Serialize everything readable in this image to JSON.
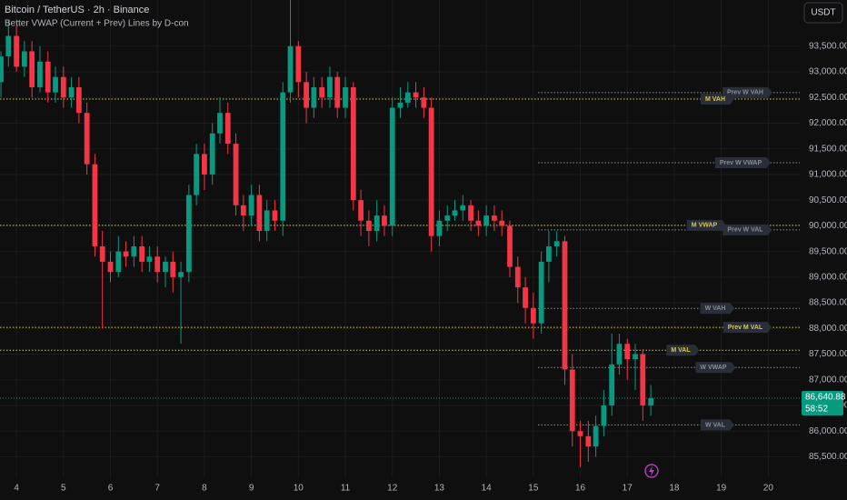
{
  "chart_data": {
    "type": "candlestick",
    "title": "Bitcoin / TetherUS · 2h · Binance",
    "subtitle": "Better VWAP (Current + Prev) Lines by D-con",
    "currency": "USDT",
    "up_color": "#089981",
    "down_color": "#f23645",
    "grid": true,
    "x": [
      3.67,
      3.83,
      4,
      4.17,
      4.33,
      4.5,
      4.67,
      4.83,
      5,
      5.17,
      5.33,
      5.5,
      5.67,
      5.83,
      6,
      6.17,
      6.33,
      6.5,
      6.67,
      6.83,
      7,
      7.17,
      7.33,
      7.5,
      7.67,
      7.83,
      8,
      8.17,
      8.33,
      8.5,
      8.67,
      8.83,
      9,
      9.17,
      9.33,
      9.5,
      9.67,
      9.83,
      10,
      10.17,
      10.33,
      10.5,
      10.67,
      10.83,
      11,
      11.17,
      11.33,
      11.5,
      11.67,
      11.83,
      12,
      12.17,
      12.33,
      12.5,
      12.67,
      12.83,
      13,
      13.17,
      13.33,
      13.5,
      13.67,
      13.83,
      14,
      14.17,
      14.33,
      14.5,
      14.67,
      14.83,
      15,
      15.17,
      15.33,
      15.5,
      15.67,
      15.83,
      16,
      16.17,
      16.33,
      16.5,
      16.67,
      16.83,
      17,
      17.17,
      17.33,
      17.5
    ],
    "open": [
      92800,
      93300,
      93700,
      93100,
      93400,
      92700,
      93200,
      92600,
      92900,
      92500,
      92700,
      92200,
      91200,
      89600,
      89300,
      89100,
      89500,
      89400,
      89600,
      89300,
      89400,
      89100,
      89300,
      89000,
      89100,
      90600,
      91400,
      91000,
      91800,
      92200,
      91600,
      90400,
      90200,
      90600,
      89900,
      90300,
      90100,
      92600,
      93500,
      92800,
      92300,
      92700,
      92500,
      92900,
      92300,
      92700,
      90500,
      90100,
      89900,
      90200,
      90000,
      92300,
      92400,
      92600,
      92500,
      92300,
      89800,
      90100,
      90200,
      90300,
      90400,
      90100,
      90000,
      90200,
      90100,
      90000,
      89200,
      88800,
      88400,
      88100,
      89300,
      89600,
      89700,
      87200,
      86000,
      85900,
      85700,
      86100,
      86500,
      87300,
      87700,
      87400,
      87500,
      86500
    ],
    "high": [
      93400,
      94000,
      93900,
      93600,
      93600,
      93500,
      93400,
      93100,
      93100,
      92900,
      92900,
      92400,
      91400,
      89900,
      89500,
      89800,
      89700,
      89800,
      89800,
      89600,
      89600,
      89400,
      89500,
      89300,
      90800,
      91600,
      91600,
      92000,
      92500,
      92400,
      91800,
      90600,
      90800,
      90800,
      90500,
      90500,
      92800,
      94400,
      93600,
      93000,
      92900,
      92900,
      93100,
      93000,
      92900,
      92800,
      90700,
      90300,
      90500,
      90400,
      92500,
      92700,
      92800,
      92800,
      92700,
      92500,
      90300,
      90400,
      90500,
      90600,
      90500,
      90300,
      90400,
      90400,
      90300,
      90100,
      89400,
      89000,
      88700,
      89500,
      89900,
      89900,
      89800,
      87500,
      86200,
      86200,
      86300,
      86800,
      87900,
      87900,
      87800,
      87700,
      87600,
      86900
    ],
    "low": [
      92500,
      93100,
      93000,
      92900,
      92500,
      92600,
      92400,
      92400,
      92300,
      92300,
      92000,
      91000,
      89400,
      88000,
      88900,
      89000,
      89200,
      89200,
      89100,
      89100,
      88900,
      88800,
      88700,
      87700,
      88900,
      90400,
      90700,
      90800,
      91600,
      91400,
      90200,
      89900,
      90000,
      89700,
      89700,
      89900,
      89800,
      92400,
      92500,
      92000,
      92100,
      92300,
      92300,
      92100,
      92100,
      90300,
      89800,
      89600,
      89700,
      89800,
      89800,
      92100,
      92300,
      92300,
      92100,
      89500,
      89600,
      89900,
      90100,
      90100,
      89900,
      89800,
      89800,
      89900,
      89800,
      89000,
      88500,
      88100,
      87800,
      87900,
      88900,
      89400,
      86900,
      85700,
      85300,
      85400,
      85500,
      85900,
      86300,
      87100,
      87000,
      86800,
      86200,
      86300
    ],
    "close": [
      93300,
      93700,
      93100,
      93400,
      92700,
      93200,
      92600,
      92900,
      92500,
      92700,
      92200,
      91200,
      89600,
      89300,
      89100,
      89500,
      89400,
      89600,
      89300,
      89400,
      89100,
      89300,
      89000,
      89100,
      90600,
      91400,
      91000,
      91800,
      92200,
      91600,
      90400,
      90200,
      90600,
      89900,
      90300,
      90100,
      92600,
      93500,
      92800,
      92300,
      92700,
      92500,
      92900,
      92300,
      92700,
      90500,
      90100,
      89900,
      90200,
      90000,
      92300,
      92400,
      92600,
      92500,
      92300,
      89800,
      90100,
      90200,
      90300,
      90400,
      90100,
      90000,
      90200,
      90100,
      90000,
      89200,
      88800,
      88400,
      88100,
      89300,
      89600,
      89700,
      87200,
      86000,
      85900,
      85700,
      86100,
      86500,
      87300,
      87700,
      87400,
      87500,
      86500,
      86640.88
    ],
    "xlim": [
      3.65,
      20.67
    ],
    "xticks": [
      4,
      5,
      6,
      7,
      8,
      9,
      10,
      11,
      12,
      13,
      14,
      15,
      16,
      17,
      18,
      19,
      20
    ],
    "ylim": [
      85100,
      94400
    ],
    "yticks": [
      {
        "value": 85500,
        "label": "85,500.00"
      },
      {
        "value": 86000,
        "label": "86,000.00"
      },
      {
        "value": 86500,
        "label": "86,500.00"
      },
      {
        "value": 87000,
        "label": "87,000.00"
      },
      {
        "value": 87500,
        "label": "87,500.00"
      },
      {
        "value": 88000,
        "label": "88,000.00"
      },
      {
        "value": 88500,
        "label": "88,500.00"
      },
      {
        "value": 89000,
        "label": "89,000.00"
      },
      {
        "value": 89500,
        "label": "89,500.00"
      },
      {
        "value": 90000,
        "label": "90,000.00"
      },
      {
        "value": 90500,
        "label": "90,500.00"
      },
      {
        "value": 91000,
        "label": "91,000.00"
      },
      {
        "value": 91500,
        "label": "91,500.00"
      },
      {
        "value": 92000,
        "label": "92,000.00"
      },
      {
        "value": 92500,
        "label": "92,500.00"
      },
      {
        "value": 93000,
        "label": "93,000.00"
      },
      {
        "value": 93500,
        "label": "93,500.00"
      }
    ],
    "levels": [
      {
        "label": "Prev W VAH",
        "value": 92595,
        "color": "#8a8d94",
        "x_start": 15.1
      },
      {
        "label": "M VAH",
        "value": 92470,
        "color": "#d9c84a"
      },
      {
        "label": "Prev W VWAP",
        "value": 91230,
        "color": "#8a8d94",
        "x_start": 15.1
      },
      {
        "label": "M VWAP",
        "value": 90010,
        "color": "#d9c84a"
      },
      {
        "label": "Prev W VAL",
        "value": 89920,
        "color": "#8a8d94",
        "x_start": 15.1
      },
      {
        "label": "W VAH",
        "value": 88390,
        "color": "#8a8d94",
        "x_start": 15.1
      },
      {
        "label": "Prev M VAL",
        "value": 88020,
        "color": "#d9c84a"
      },
      {
        "label": "M VAL",
        "value": 87575,
        "color": "#d9c84a"
      },
      {
        "label": "W VWAP",
        "value": 87240,
        "color": "#8a8d94",
        "x_start": 15.1
      },
      {
        "label": "W VAL",
        "value": 86120,
        "color": "#8a8d94",
        "x_start": 15.1
      }
    ],
    "last_price": {
      "value": 86640.88,
      "label": "86,640.88",
      "countdown": "58:52"
    }
  }
}
